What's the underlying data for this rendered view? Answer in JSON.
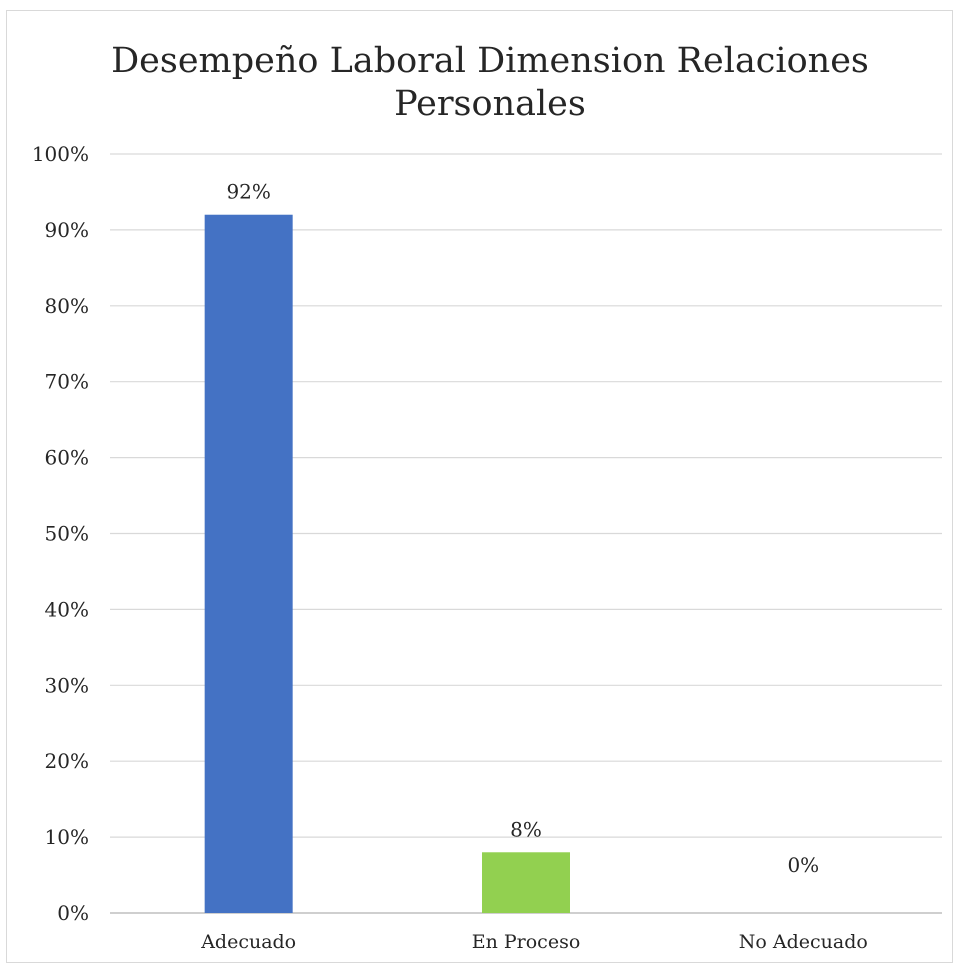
{
  "chart_data": {
    "type": "bar",
    "title_lines": [
      "Desempeño Laboral Dimension Relaciones",
      "Personales"
    ],
    "categories": [
      "Adecuado",
      "En Proceso",
      "No Adecuado"
    ],
    "values": [
      0.92,
      0.08,
      0.0
    ],
    "data_labels": [
      "92%",
      "8%",
      "0%"
    ],
    "colors": [
      "#4472c4",
      "#92d050",
      "#a5a5a5"
    ],
    "ylim": [
      0,
      1
    ],
    "yticks": [
      0,
      0.1,
      0.2,
      0.3,
      0.4,
      0.5,
      0.6,
      0.7,
      0.8,
      0.9,
      1.0
    ],
    "ytick_labels": [
      "0%",
      "10%",
      "20%",
      "30%",
      "40%",
      "50%",
      "60%",
      "70%",
      "80%",
      "90%",
      "100%"
    ],
    "grid": true,
    "legend": "none",
    "gridline_color": "#d9d9d9",
    "axis_color": "#bfbfbf"
  }
}
